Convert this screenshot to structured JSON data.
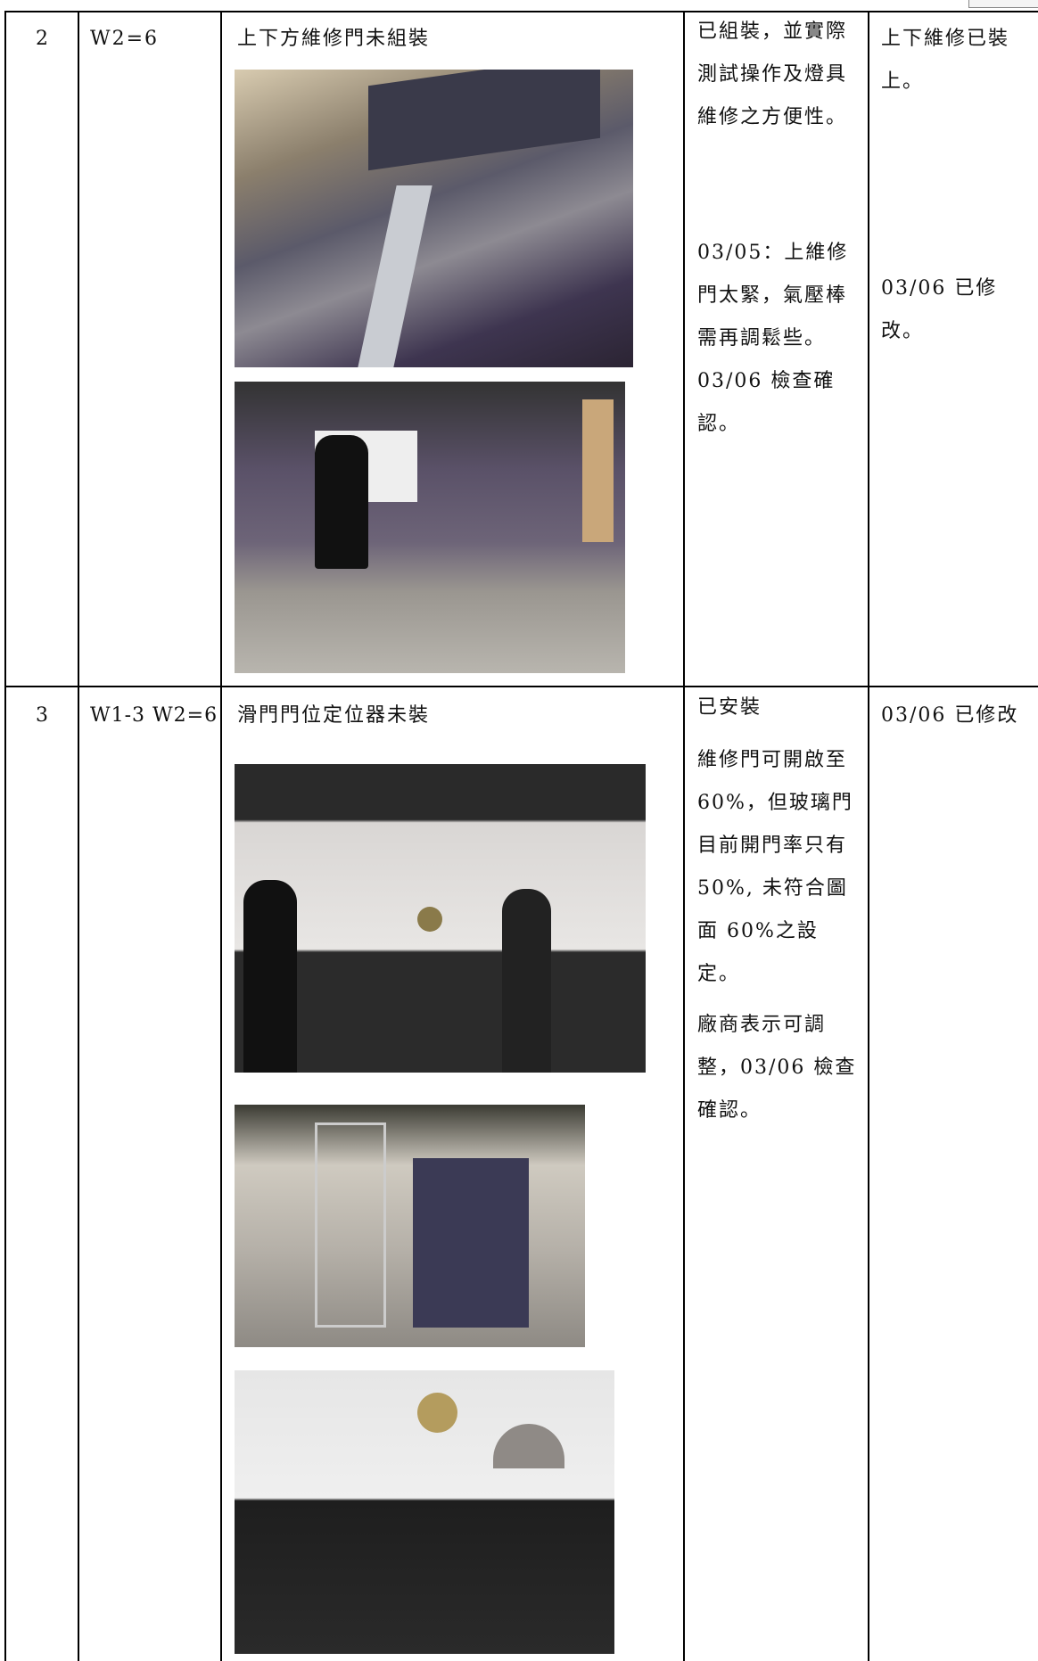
{
  "table": {
    "rows": [
      {
        "no": "2",
        "location": "W2=6",
        "issue": "上下方維修門未組裝",
        "response": [
          "已組裝，並實際測試操作及燈具維修之方便性。",
          "03/05：上維修門太緊，氣壓棒需再調鬆些。03/06 檢查確認。"
        ],
        "result": [
          "上下維修已裝上。",
          "03/06 已修改。"
        ]
      },
      {
        "no": "3",
        "location": "W1-3 W2=6",
        "issue": "滑門門位定位器未裝",
        "response": [
          "已安裝",
          "維修門可開啟至 60%，但玻璃門目前開門率只有 50%, 未符合圖面 60%之設定。",
          "廠商表示可調整，03/06 檢查確認。"
        ],
        "result": [
          "03/06 已修改"
        ]
      }
    ]
  }
}
